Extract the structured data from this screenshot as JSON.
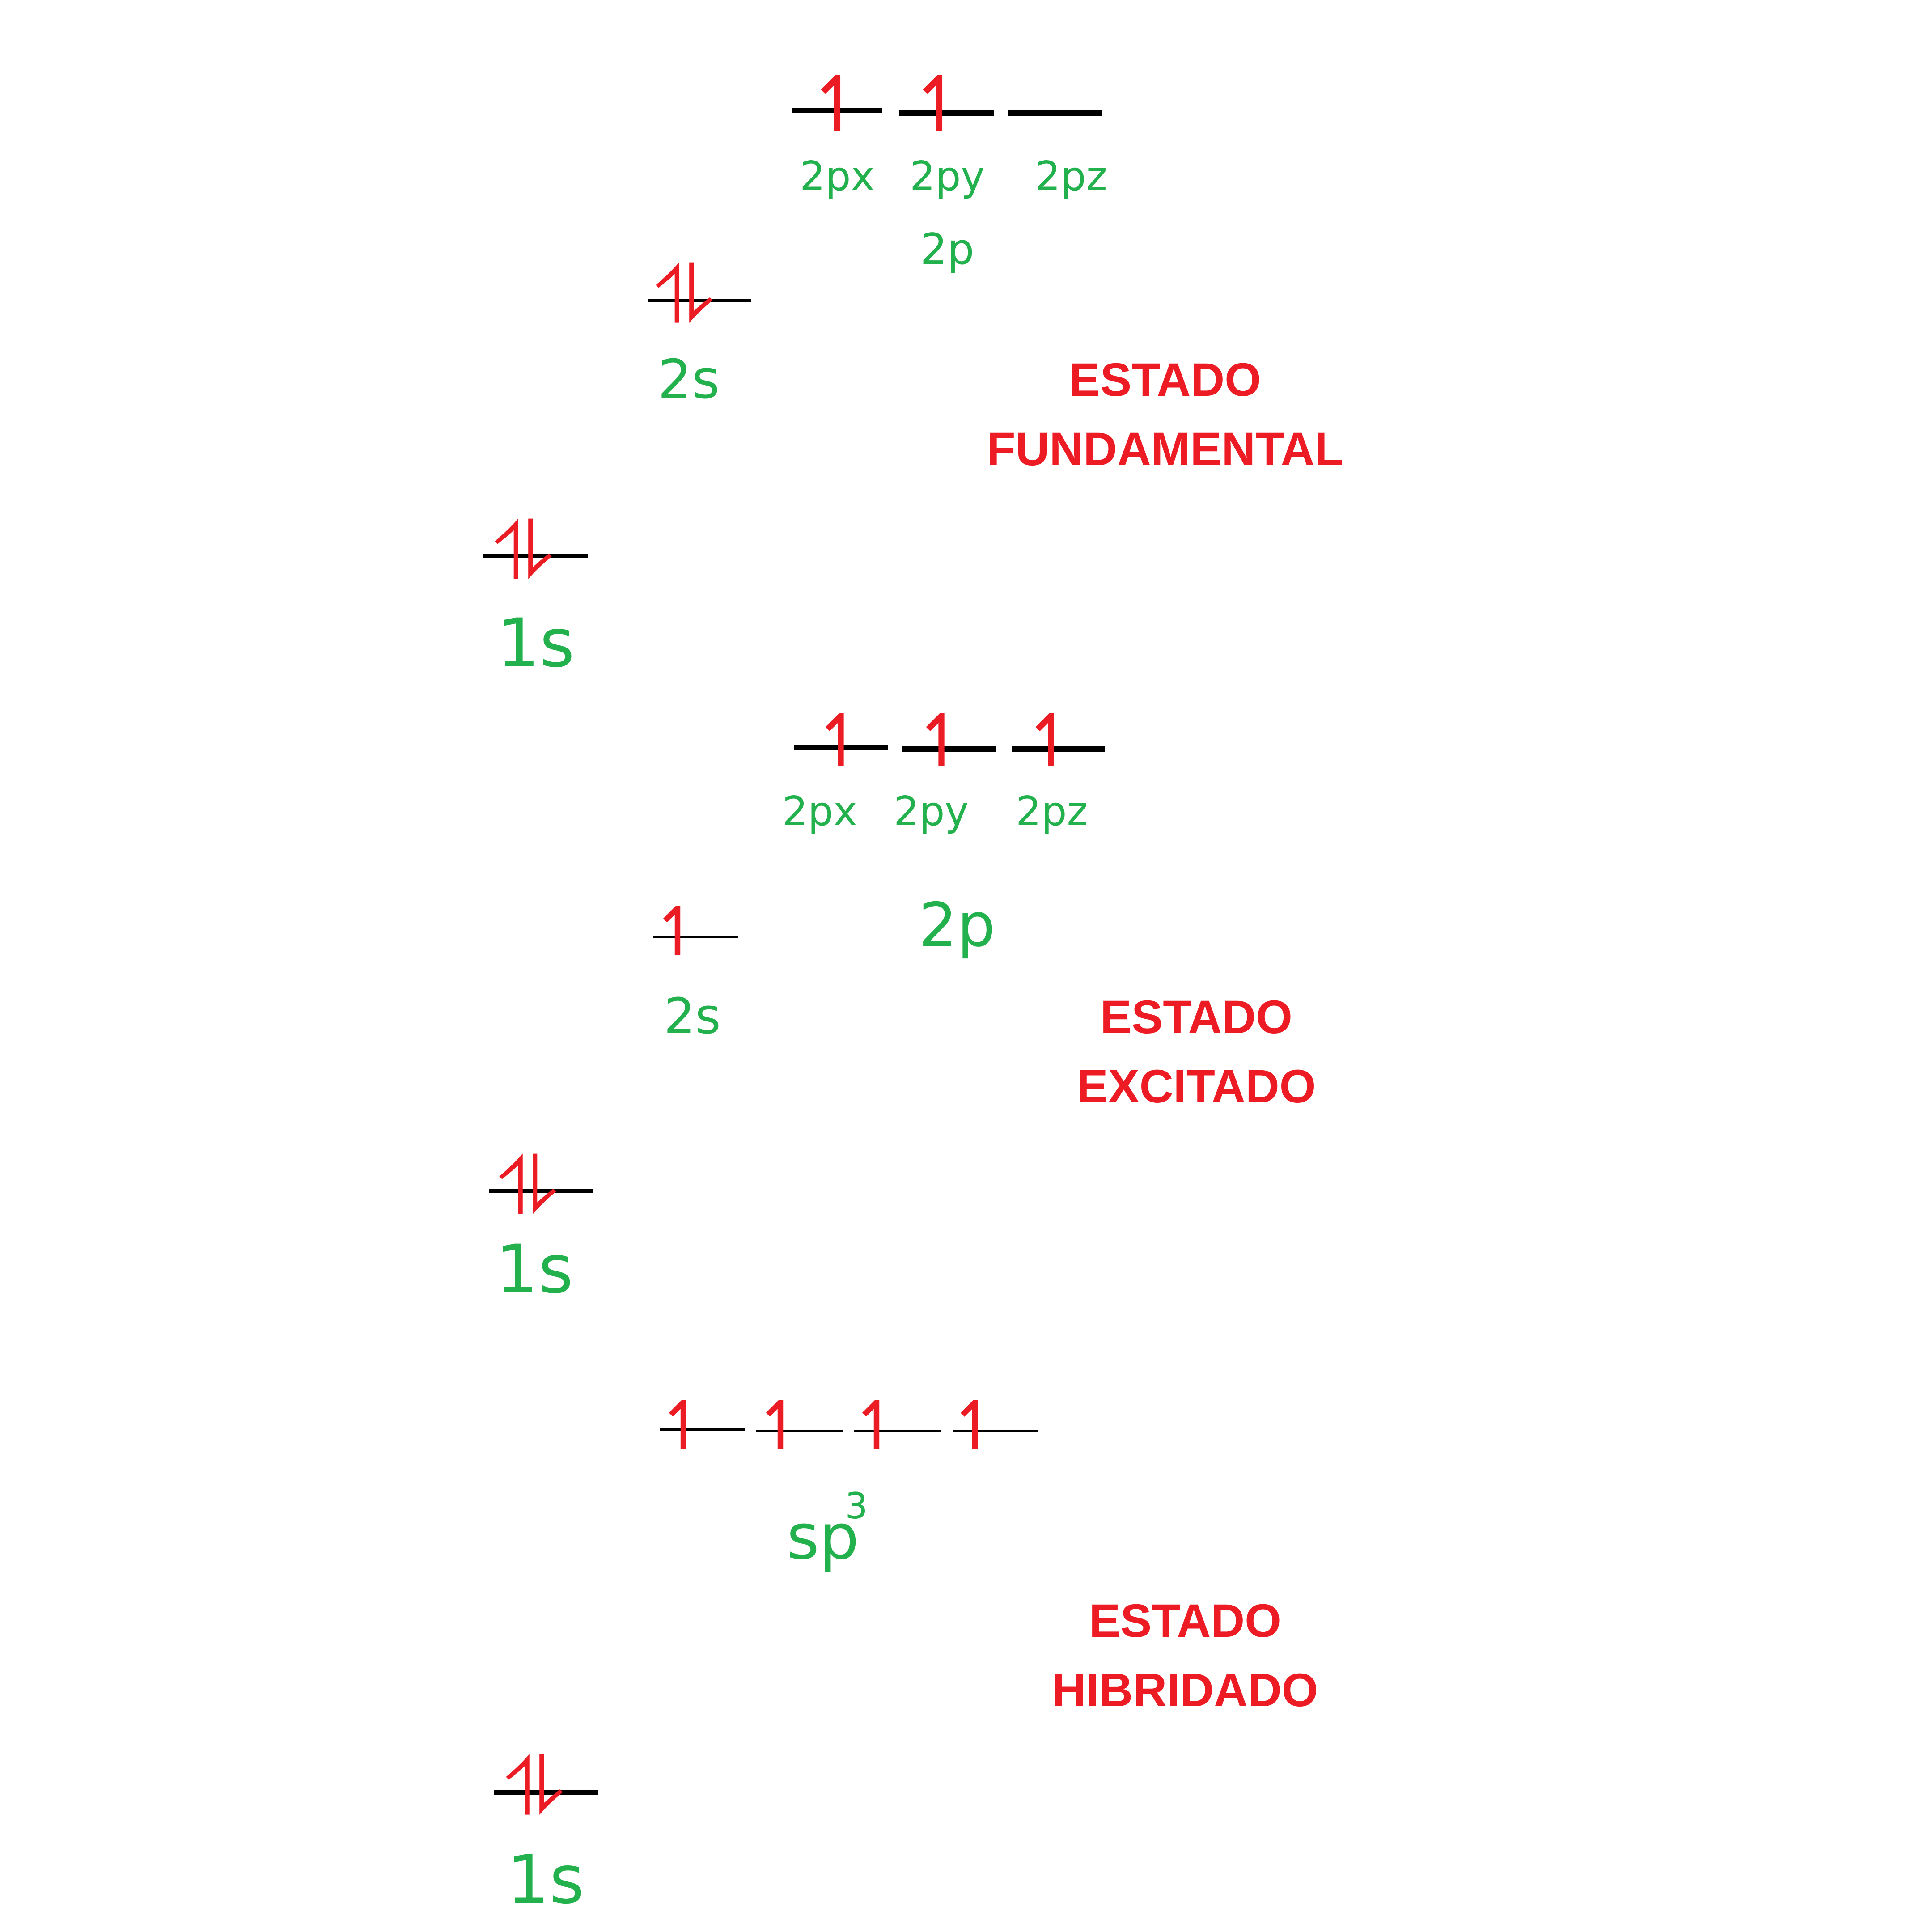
{
  "colors": {
    "background": "#ffffff",
    "line": "#000000",
    "electron": "#ec1c24",
    "label": "#22b14c",
    "title": "#ed1c24"
  },
  "electron_symbols": {
    "single": "↿",
    "pair": "⥮"
  },
  "fundamental": {
    "title_line1": "ESTADO",
    "title_line2": "FUNDAMENTAL",
    "p_orbitals": [
      {
        "label": "2px",
        "electrons": 1
      },
      {
        "label": "2py",
        "electrons": 1
      },
      {
        "label": "2pz",
        "electrons": 0
      }
    ],
    "p_label": "2p",
    "s2": {
      "label": "2s",
      "electrons": 2
    },
    "s1": {
      "label": "1s",
      "electrons": 2
    }
  },
  "excitado": {
    "title_line1": "ESTADO",
    "title_line2": "EXCITADO",
    "p_orbitals": [
      {
        "label": "2px",
        "electrons": 1
      },
      {
        "label": "2py",
        "electrons": 1
      },
      {
        "label": "2pz",
        "electrons": 1
      }
    ],
    "p_label": "2p",
    "s2": {
      "label": "2s",
      "electrons": 1
    },
    "s1": {
      "label": "1s",
      "electrons": 2
    }
  },
  "hibridado": {
    "title_line1": "ESTADO",
    "title_line2": "HIBRIDADO",
    "sp3_orbitals": [
      {
        "electrons": 1
      },
      {
        "electrons": 1
      },
      {
        "electrons": 1
      },
      {
        "electrons": 1
      }
    ],
    "sp3_label": "sp",
    "sp3_superscript": "3",
    "s1": {
      "label": "1s",
      "electrons": 2
    }
  }
}
